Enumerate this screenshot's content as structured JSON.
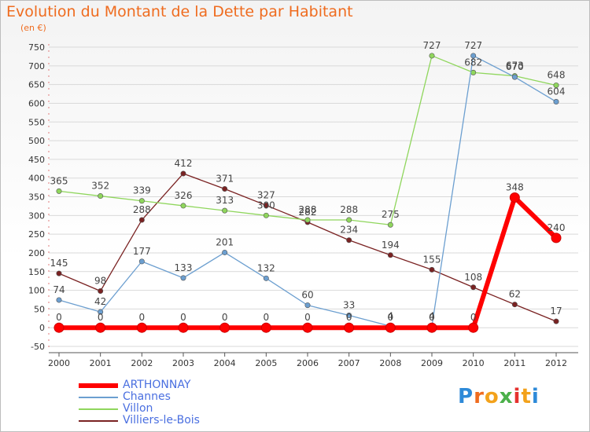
{
  "header": {
    "title": "Evolution du Montant de la Dette par Habitant",
    "subtitle": "(en €)"
  },
  "logo": {
    "text": "Proxiti"
  },
  "colors": {
    "title": "#ef6c1f",
    "grid": "#d9d9d9",
    "axis": "#555555",
    "legend_text": "#4a6fe0"
  },
  "chart_data": {
    "type": "line",
    "x": [
      "2000",
      "2001",
      "2002",
      "2003",
      "2004",
      "2005",
      "2006",
      "2007",
      "2008",
      "2009",
      "2010",
      "2011",
      "2012"
    ],
    "ylim": [
      -50,
      750
    ],
    "yticks": [
      -50,
      0,
      50,
      100,
      150,
      200,
      250,
      300,
      350,
      400,
      450,
      500,
      550,
      600,
      650,
      700,
      750
    ],
    "grid": true,
    "legend_position": "bottom-left",
    "series": [
      {
        "name": "ARTHONNAY",
        "color": "#ff0000",
        "values": [
          0,
          0,
          0,
          0,
          0,
          0,
          0,
          0,
          0,
          0,
          0,
          348,
          240
        ],
        "labels": [
          "0",
          "0",
          "0",
          "0",
          "0",
          "0",
          "0",
          "0",
          "0",
          "0",
          "0",
          "348",
          "240"
        ]
      },
      {
        "name": "Channes",
        "color": "#6c9fd0",
        "values": [
          74,
          42,
          177,
          133,
          201,
          132,
          60,
          33,
          4,
          4,
          727,
          670,
          604
        ],
        "labels": [
          "74",
          "42",
          "177",
          "133",
          "201",
          "132",
          "60",
          "33",
          "4",
          "4",
          "727",
          "670",
          "604"
        ]
      },
      {
        "name": "Villon",
        "color": "#8fd65c",
        "values": [
          365,
          352,
          339,
          326,
          313,
          300,
          288,
          288,
          275,
          727,
          682,
          673,
          648
        ],
        "labels": [
          "365",
          "352",
          "339",
          "326",
          "313",
          "300",
          "288",
          "288",
          "275",
          "727",
          "682",
          "673",
          "648"
        ]
      },
      {
        "name": "Villiers-le-Bois",
        "color": "#7a2222",
        "values": [
          145,
          98,
          288,
          412,
          371,
          327,
          282,
          234,
          194,
          155,
          108,
          62,
          17
        ],
        "labels": [
          "145",
          "98",
          "288",
          "412",
          "371",
          "327",
          "282",
          "234",
          "194",
          "155",
          "108",
          "62",
          "17"
        ]
      }
    ]
  }
}
